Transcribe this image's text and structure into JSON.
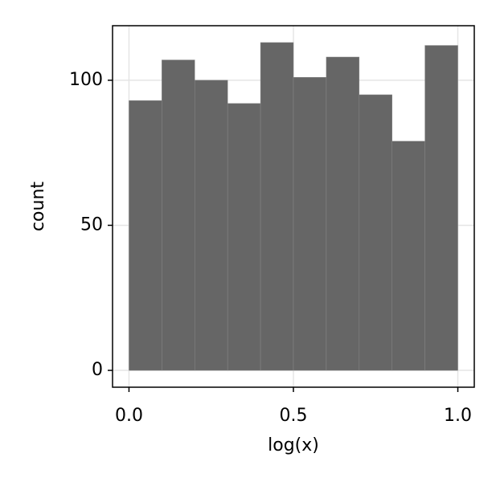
{
  "chart_data": {
    "type": "histogram",
    "xlabel": "log(x)",
    "ylabel": "count",
    "bins": [
      0,
      0.1,
      0.2,
      0.3,
      0.4,
      0.5,
      0.6,
      0.7,
      0.8,
      0.9,
      1.0
    ],
    "values": [
      93,
      107,
      100,
      92,
      113,
      101,
      108,
      95,
      79,
      112
    ],
    "color": "#666666",
    "xlim": [
      -0.05,
      1.05
    ],
    "ylim": [
      -5.8,
      118.8
    ],
    "xticks": [
      {
        "value": 0,
        "label": "0.0"
      },
      0.5,
      {
        "value": 1,
        "label": "1.0"
      }
    ],
    "yticks": [
      0,
      50,
      100
    ],
    "grid": true
  }
}
